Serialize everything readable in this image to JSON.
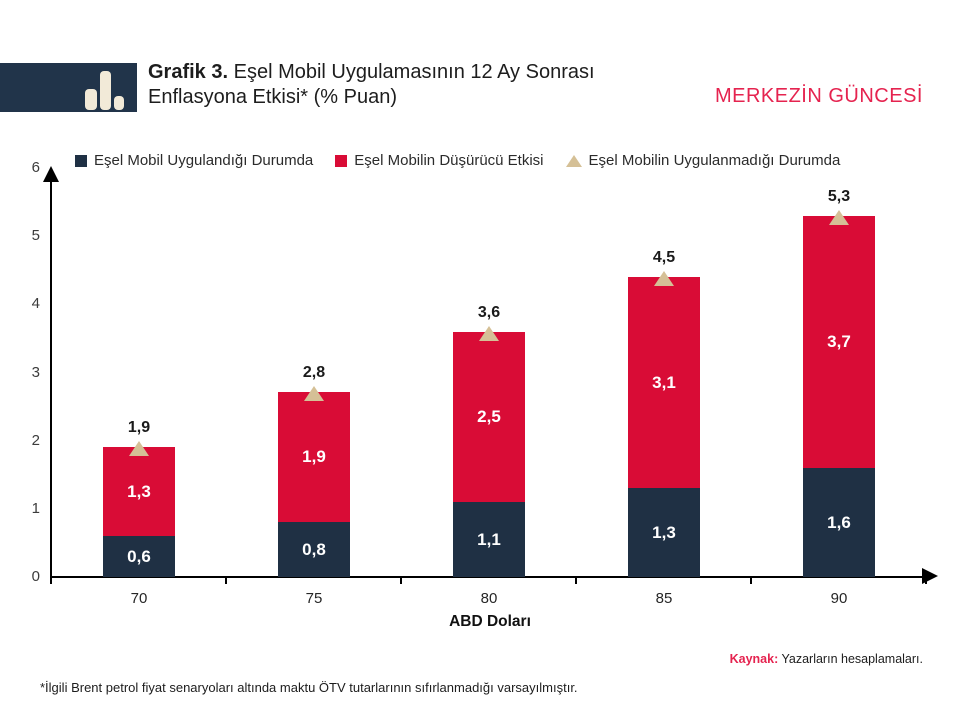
{
  "header": {
    "title_prefix": "Grafik 3.",
    "title_rest": " Eşel Mobil Uygulamasının 12 Ay Sonrası Enflasyona Etkisi* (% Puan)",
    "brand": "MERKEZİN GÜNCESİ"
  },
  "colors": {
    "navy": "#1f3044",
    "red": "#d90c36",
    "beige": "#d5c096",
    "brand_red": "#e5234f",
    "axis": "#000000"
  },
  "legend": [
    {
      "label": "Eşel Mobil Uygulandığı Durumda",
      "marker": "square",
      "color": "#1f3044"
    },
    {
      "label": "Eşel Mobilin Düşürücü Etkisi",
      "marker": "square",
      "color": "#d90c36"
    },
    {
      "label": "Eşel Mobilin Uygulanmadığı Durumda",
      "marker": "triangle",
      "color": "#d5c096"
    }
  ],
  "chart_data": {
    "type": "bar",
    "stacked": true,
    "categories": [
      "70",
      "75",
      "80",
      "85",
      "90"
    ],
    "series": [
      {
        "name": "Eşel Mobil Uygulandığı Durumda",
        "values": [
          0.6,
          0.8,
          1.1,
          1.3,
          1.6
        ],
        "labels": [
          "0,6",
          "0,8",
          "1,1",
          "1,3",
          "1,6"
        ],
        "color": "#1f3044"
      },
      {
        "name": "Eşel Mobilin Düşürücü Etkisi",
        "values": [
          1.3,
          1.9,
          2.5,
          3.1,
          3.7
        ],
        "labels": [
          "1,3",
          "1,9",
          "2,5",
          "3,1",
          "3,7"
        ],
        "color": "#d90c36"
      }
    ],
    "totals": {
      "name": "Eşel Mobilin Uygulanmadığı Durumda",
      "values": [
        1.9,
        2.8,
        3.6,
        4.5,
        5.3
      ],
      "labels": [
        "1,9",
        "2,8",
        "3,6",
        "4,5",
        "5,3"
      ],
      "marker": "triangle",
      "marker_color": "#d5c096"
    },
    "title": "Grafik 3. Eşel Mobil Uygulamasının 12 Ay Sonrası Enflasyona Etkisi* (% Puan)",
    "xlabel": "ABD Doları",
    "ylabel": "",
    "ylim": [
      0,
      6
    ],
    "yticks": [
      0,
      1,
      2,
      3,
      4,
      5,
      6
    ],
    "grid": false,
    "legend_position": "top"
  },
  "footer": {
    "source_label": "Kaynak:",
    "source_text": " Yazarların hesaplamaları.",
    "footnote": "*İlgili Brent petrol fiyat senaryoları altında maktu ÖTV tutarlarının sıfırlanmadığı varsayılmıştır."
  }
}
